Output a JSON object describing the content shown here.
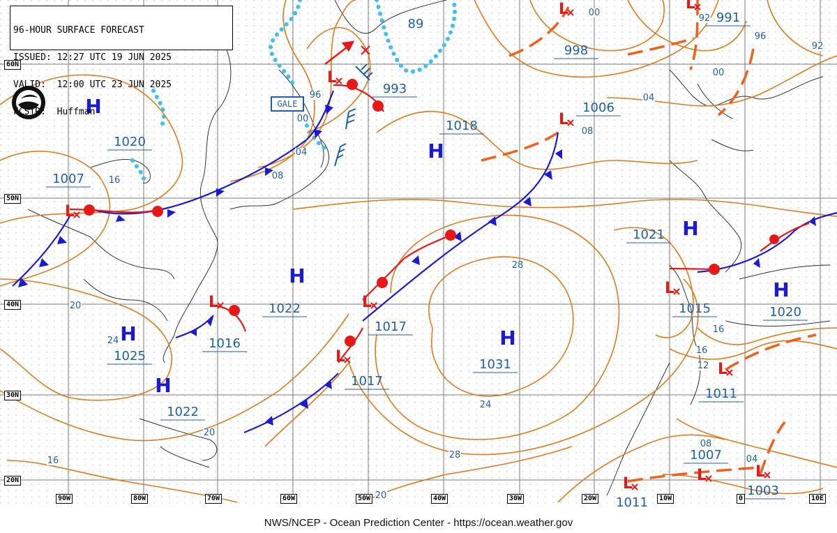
{
  "header": {
    "title": "96-HOUR SURFACE FORECAST",
    "issued": "ISSUED: 12:27 UTC 19 JUN 2025",
    "valid": "VALID:  12:00 UTC 23 JUN 2025",
    "forecaster": "FCSTR:  Huffman"
  },
  "footer": "NWS/NCEP - Ocean Prediction Center - https://ocean.weather.gov",
  "gale_label": "GALE",
  "lat_labels": [
    "60N",
    "50N",
    "40N",
    "30N",
    "20N"
  ],
  "lon_labels": [
    "90W",
    "80W",
    "70W",
    "60W",
    "50W",
    "40W",
    "30W",
    "20W",
    "10W",
    "0",
    "10E"
  ],
  "highs": [
    {
      "symbol": "H",
      "pressure": "1020"
    },
    {
      "symbol": "H",
      "pressure": "1022"
    },
    {
      "symbol": "H",
      "pressure": "1025"
    },
    {
      "symbol": "H",
      "pressure": "1022"
    },
    {
      "symbol": "H",
      "pressure": "1018"
    },
    {
      "symbol": "H",
      "pressure": "1031"
    },
    {
      "symbol": "H",
      "pressure": "1021"
    },
    {
      "symbol": "H",
      "pressure": "1020"
    }
  ],
  "lows": [
    {
      "symbol": "L",
      "pressure": "1007"
    },
    {
      "symbol": "L",
      "pressure": "1016"
    },
    {
      "symbol": "L",
      "pressure": "993"
    },
    {
      "symbol": "L",
      "pressure": "1017"
    },
    {
      "symbol": "L",
      "pressure": "1017"
    },
    {
      "symbol": "L",
      "pressure": "1006"
    },
    {
      "symbol": "L",
      "pressure": "998"
    },
    {
      "symbol": "L",
      "pressure": "991"
    },
    {
      "symbol": "L",
      "pressure": "1015"
    },
    {
      "symbol": "L",
      "pressure": "1011"
    },
    {
      "symbol": "L",
      "pressure": "1011"
    },
    {
      "symbol": "L",
      "pressure": "1007"
    },
    {
      "symbol": "L",
      "pressure": "1003"
    }
  ],
  "isobar_labels": [
    "96",
    "00",
    "04",
    "08",
    "16",
    "20",
    "24",
    "28",
    "24",
    "28",
    "20",
    "16",
    "89",
    "00",
    "92",
    "96",
    "92",
    "00",
    "04",
    "08",
    "16",
    "16",
    "12",
    "08",
    "04",
    "20"
  ],
  "colors": {
    "isobar": "#e07a1a",
    "cold_front": "#1a1ad6",
    "warm_front": "#e81818",
    "trough": "#f0601a",
    "ice": "#3fbff0",
    "grid": "#777777",
    "pressure_text": "#1f5fa8",
    "coast": "#333333"
  }
}
